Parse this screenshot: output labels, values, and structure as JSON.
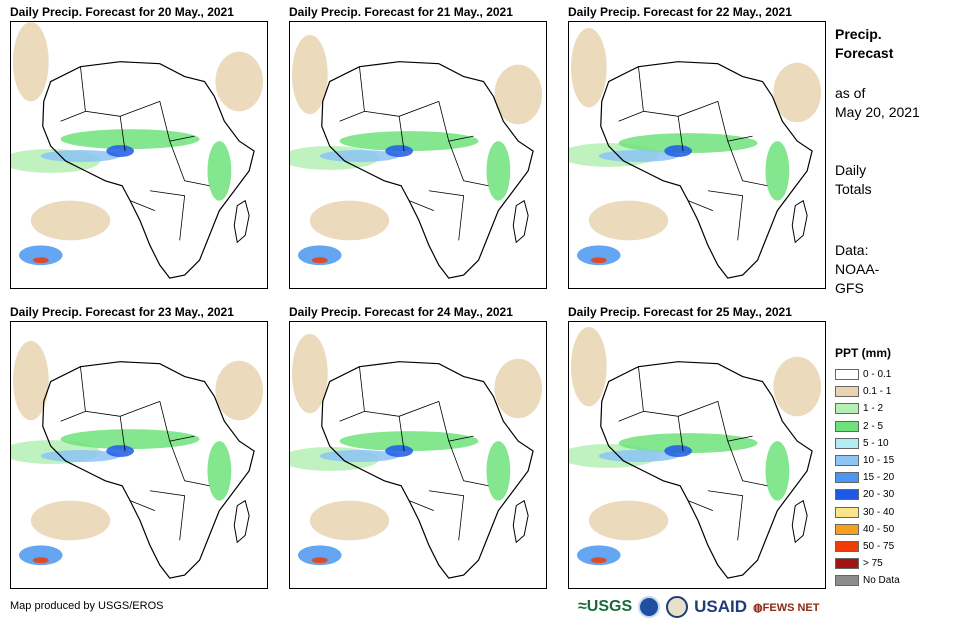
{
  "panels": [
    {
      "title": "Daily Precip. Forecast for 20 May., 2021"
    },
    {
      "title": "Daily Precip. Forecast for 21 May., 2021"
    },
    {
      "title": "Daily Precip. Forecast for 22 May., 2021"
    },
    {
      "title": "Daily Precip. Forecast for 23 May., 2021"
    },
    {
      "title": "Daily Precip. Forecast for 24 May., 2021"
    },
    {
      "title": "Daily Precip. Forecast for 25 May., 2021"
    }
  ],
  "side": {
    "heading_line1": "Precip.",
    "heading_line2": "Forecast",
    "asof_line1": "as of",
    "asof_line2": "May 20, 2021",
    "totals_line1": "Daily",
    "totals_line2": "Totals",
    "data_line1": "Data:",
    "data_line2": "NOAA-",
    "data_line3": "GFS"
  },
  "legend": {
    "title": "PPT (mm)",
    "items": [
      {
        "label": "0 - 0.1",
        "color": "#ffffff"
      },
      {
        "label": "0.1 - 1",
        "color": "#e8d4b0"
      },
      {
        "label": "1 - 2",
        "color": "#b4f0b4"
      },
      {
        "label": "2 - 5",
        "color": "#6ee27a"
      },
      {
        "label": "5 - 10",
        "color": "#b4ecf4"
      },
      {
        "label": "10 - 15",
        "color": "#8cc4f4"
      },
      {
        "label": "15 - 20",
        "color": "#4a96f0"
      },
      {
        "label": "20 - 30",
        "color": "#1e5ae6"
      },
      {
        "label": "30 - 40",
        "color": "#fce48c"
      },
      {
        "label": "40 - 50",
        "color": "#f8a01e"
      },
      {
        "label": "50 - 75",
        "color": "#f03c0a"
      },
      {
        "label": "> 75",
        "color": "#a01414"
      },
      {
        "label": "No Data",
        "color": "#8c8c8c"
      }
    ]
  },
  "footer": {
    "credit": "Map produced by USGS/EROS"
  },
  "logos": {
    "usgs": "USGS",
    "usaid": "USAID",
    "fewsnet": "FEWS NET"
  }
}
